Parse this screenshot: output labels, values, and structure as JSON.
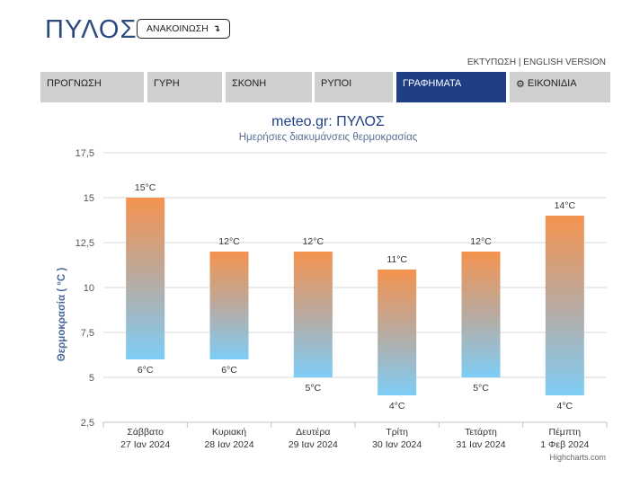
{
  "header": {
    "city": "ΠΥΛΟΣ",
    "announce_label": "ΑΝΑΚΟΙΝΩΣΗ",
    "announce_icon": "arrow-turn-icon",
    "print_link": "ΕΚΤΥΠΩΣΗ",
    "separator": "|",
    "english_link": "ENGLISH VERSION"
  },
  "tabs": [
    {
      "label": "ΠΡΟΓΝΩΣΗ",
      "active": false
    },
    {
      "label": "ΓΥΡΗ",
      "active": false
    },
    {
      "label": "ΣΚΟΝΗ",
      "active": false
    },
    {
      "label": "ΡΥΠΟΙ",
      "active": false
    },
    {
      "label": "ΓΡΑΦΗΜΑΤΑ",
      "active": true
    },
    {
      "label": "ΕΙΚΟΝΙΔΙΑ",
      "active": false,
      "icon": "gear-icon"
    }
  ],
  "colors": {
    "accent": "#1e3f86",
    "tab_bg": "#cfcfcf",
    "bar_top": "#f4934f",
    "bar_bottom": "#7ecdf6",
    "title_color": "#1e3f86",
    "axis_title_color": "#4a6a9a"
  },
  "chart_data": {
    "type": "bar",
    "title": "meteo.gr: ΠΥΛΟΣ",
    "subtitle": "Ημερήσιες διακυμάνσεις θερμοκρασίας",
    "ylabel": "Θερμοκρασία ( °C )",
    "xlabel": "",
    "ylim": [
      2.5,
      17.5
    ],
    "yticks": [
      "2,5",
      "5",
      "7,5",
      "10",
      "12,5",
      "15",
      "17,5"
    ],
    "ytick_values": [
      2.5,
      5,
      7.5,
      10,
      12.5,
      15,
      17.5
    ],
    "grid": true,
    "categories": [
      {
        "day": "Σάββατο",
        "date": "27 Ιαν 2024"
      },
      {
        "day": "Κυριακή",
        "date": "28 Ιαν 2024"
      },
      {
        "day": "Δευτέρα",
        "date": "29 Ιαν 2024"
      },
      {
        "day": "Τρίτη",
        "date": "30 Ιαν 2024"
      },
      {
        "day": "Τετάρτη",
        "date": "31 Ιαν 2024"
      },
      {
        "day": "Πέμπτη",
        "date": "1 Φεβ 2024"
      }
    ],
    "series": [
      {
        "low": 6,
        "high": 15,
        "low_label": "6°C",
        "high_label": "15°C"
      },
      {
        "low": 6,
        "high": 12,
        "low_label": "6°C",
        "high_label": "12°C"
      },
      {
        "low": 5,
        "high": 12,
        "low_label": "5°C",
        "high_label": "12°C"
      },
      {
        "low": 4,
        "high": 11,
        "low_label": "4°C",
        "high_label": "11°C"
      },
      {
        "low": 5,
        "high": 12,
        "low_label": "5°C",
        "high_label": "12°C"
      },
      {
        "low": 4,
        "high": 14,
        "low_label": "4°C",
        "high_label": "14°C"
      }
    ],
    "credit": "Highcharts.com"
  }
}
